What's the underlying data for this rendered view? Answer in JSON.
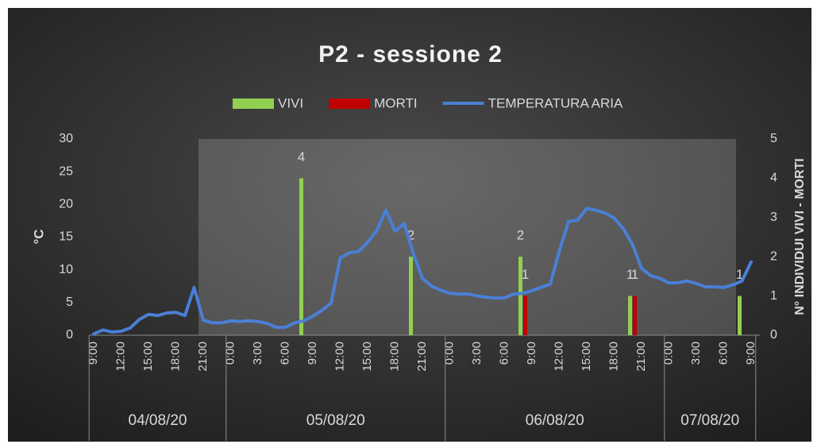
{
  "chart_data": {
    "type": "combo",
    "title": "P2 - sessione 2",
    "y_label": "°C",
    "y2_label": "N° INDIVIDUI VIVI - MORTI",
    "legend": "top",
    "categories": [
      "9:00",
      null,
      null,
      "12:00",
      null,
      null,
      "15:00",
      null,
      null,
      "18:00",
      null,
      null,
      "21:00",
      null,
      null,
      "0:00",
      null,
      null,
      "3:00",
      null,
      null,
      "6:00",
      null,
      null,
      "9:00",
      null,
      null,
      "12:00",
      null,
      null,
      "15:00",
      null,
      null,
      "18:00",
      null,
      null,
      "21:00",
      null,
      null,
      "0:00",
      null,
      null,
      "3:00",
      null,
      null,
      "6:00",
      null,
      null,
      "9:00",
      null,
      null,
      "12:00",
      null,
      null,
      "15:00",
      null,
      null,
      "18:00",
      null,
      null,
      "21:00",
      null,
      null,
      "0:00",
      null,
      null,
      "3:00",
      null,
      null,
      "6:00",
      null,
      null,
      "9:00"
    ],
    "date_groups": [
      {
        "label": "04/08/20",
        "count": 15
      },
      {
        "label": "05/08/20",
        "count": 24
      },
      {
        "label": "06/08/20",
        "count": 24
      },
      {
        "label": "07/08/20",
        "count": 10
      }
    ],
    "series": [
      {
        "name": "VIVI",
        "type": "bar",
        "axis": "y2",
        "color": "#92d050",
        "values": [
          null,
          null,
          null,
          null,
          null,
          null,
          null,
          null,
          null,
          null,
          null,
          null,
          null,
          null,
          null,
          null,
          null,
          null,
          null,
          null,
          null,
          null,
          null,
          4,
          null,
          null,
          null,
          null,
          null,
          null,
          null,
          null,
          null,
          null,
          null,
          2,
          null,
          null,
          null,
          null,
          null,
          null,
          null,
          null,
          null,
          null,
          null,
          2,
          null,
          null,
          null,
          null,
          null,
          null,
          null,
          null,
          null,
          null,
          null,
          1,
          null,
          null,
          null,
          null,
          null,
          null,
          null,
          null,
          null,
          null,
          null,
          1,
          null
        ]
      },
      {
        "name": "MORTI",
        "type": "bar",
        "axis": "y2",
        "color": "#c00000",
        "values": [
          null,
          null,
          null,
          null,
          null,
          null,
          null,
          null,
          null,
          null,
          null,
          null,
          null,
          null,
          null,
          null,
          null,
          null,
          null,
          null,
          null,
          null,
          null,
          null,
          null,
          null,
          null,
          null,
          null,
          null,
          null,
          null,
          null,
          null,
          null,
          null,
          null,
          null,
          null,
          null,
          null,
          null,
          null,
          null,
          null,
          null,
          null,
          1,
          null,
          null,
          null,
          null,
          null,
          null,
          null,
          null,
          null,
          null,
          null,
          1,
          null,
          null,
          null,
          null,
          null,
          null,
          null,
          null,
          null,
          null,
          null,
          null,
          null
        ]
      },
      {
        "name": "TEMPERATURA ARIA",
        "type": "line",
        "color": "#4a7fd6",
        "values": [
          0.2,
          0.8,
          0.5,
          0.6,
          1.1,
          2.4,
          3.2,
          3.0,
          3.4,
          3.5,
          3.0,
          7.3,
          2.3,
          1.9,
          1.9,
          2.2,
          2.1,
          2.2,
          2.1,
          1.8,
          1.2,
          1.2,
          1.9,
          2.2,
          2.9,
          3.8,
          4.9,
          11.8,
          12.6,
          12.8,
          14.2,
          16.0,
          19.1,
          15.9,
          17.1,
          12.5,
          8.7,
          7.5,
          6.9,
          6.4,
          6.3,
          6.3,
          6.0,
          5.8,
          5.7,
          5.7,
          6.3,
          6.4,
          6.8,
          7.3,
          7.8,
          12.9,
          17.4,
          17.6,
          19.4,
          19.1,
          18.7,
          17.9,
          16.3,
          13.9,
          10.2,
          9.1,
          8.7,
          8.0,
          8.0,
          8.3,
          7.9,
          7.4,
          7.4,
          7.3,
          7.7,
          8.3,
          11.2
        ]
      }
    ],
    "ylim": [
      0,
      30
    ],
    "yticks": [
      0,
      5,
      10,
      15,
      20,
      25,
      30
    ],
    "y2lim": [
      0,
      5
    ],
    "y2ticks": [
      0,
      1,
      2,
      3,
      4,
      5
    ]
  }
}
